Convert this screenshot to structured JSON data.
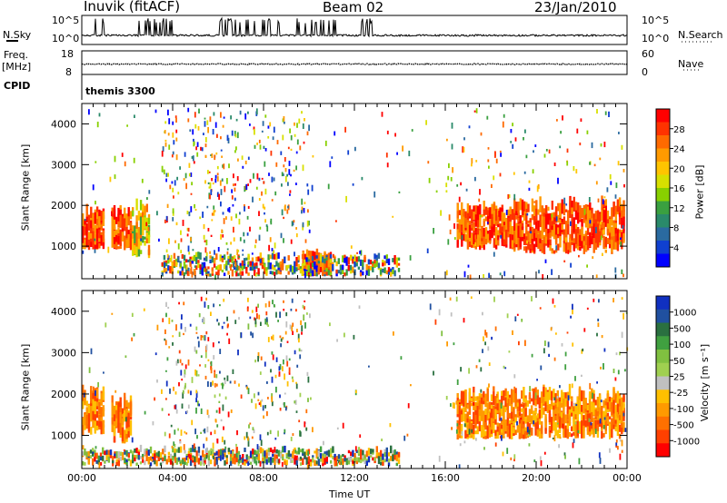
{
  "header": {
    "station": "Inuvik (fitACF)",
    "beam": "Beam 02",
    "date": "23/Jan/2010"
  },
  "top_panels": {
    "sky_label": "N.Sky",
    "search_label": "N.Search",
    "freq_label": "Freq.",
    "freq_unit": "[MHz]",
    "nave_label": "Nave",
    "cpid_label": "CPID",
    "cpid_value": "themis 3300",
    "sky_ticks": [
      "10^5",
      "10^0"
    ],
    "search_ticks": [
      "10^5",
      "10^0"
    ],
    "freq_ticks": [
      "18",
      "8"
    ],
    "nave_ticks": [
      "60",
      "0"
    ]
  },
  "chart_data": [
    {
      "type": "heatmap",
      "name": "power-panel",
      "ylabel": "Slant Range [km]",
      "ylim": [
        200,
        4500
      ],
      "yticks": [
        1000,
        2000,
        3000,
        4000
      ],
      "xlim": [
        0,
        24
      ],
      "colorbar": {
        "label": "Power [dB]",
        "ticks": [
          "28",
          "24",
          "20",
          "16",
          "12",
          "8",
          "4"
        ],
        "colors": [
          "#ff0000",
          "#ff3300",
          "#ff6a00",
          "#ff9a00",
          "#ffc400",
          "#d8e000",
          "#88d000",
          "#3aa040",
          "#2a8a6a",
          "#2a6aa0",
          "#1040d0",
          "#0000ff"
        ]
      },
      "regions": [
        {
          "t0": 0.0,
          "t1": 1.0,
          "r0": 900,
          "r1": 1700,
          "level": "high"
        },
        {
          "t0": 1.3,
          "t1": 2.2,
          "r0": 900,
          "r1": 1700,
          "level": "high"
        },
        {
          "t0": 2.2,
          "t1": 3.0,
          "r0": 700,
          "r1": 1900,
          "level": "mid"
        },
        {
          "t0": 16.5,
          "t1": 19.0,
          "r0": 900,
          "r1": 1800,
          "level": "high"
        },
        {
          "t0": 19.0,
          "t1": 23.9,
          "r0": 800,
          "r1": 1900,
          "level": "high"
        },
        {
          "t0": 9.7,
          "t1": 11.0,
          "r0": 250,
          "r1": 600,
          "level": "high"
        },
        {
          "t0": 3.5,
          "t1": 14.0,
          "r0": 250,
          "r1": 700,
          "level": "mixed"
        }
      ]
    },
    {
      "type": "heatmap",
      "name": "velocity-panel",
      "ylabel": "Slant Range [km]",
      "ylim": [
        200,
        4500
      ],
      "yticks": [
        1000,
        2000,
        3000,
        4000
      ],
      "xlim": [
        0,
        24
      ],
      "xlabel": "Time UT",
      "xticks": [
        "00:00",
        "04:00",
        "08:00",
        "12:00",
        "16:00",
        "20:00",
        "00:00"
      ],
      "colorbar": {
        "label": "Velocity [m s⁻¹]",
        "ticks": [
          "1000",
          "500",
          "100",
          "50",
          "25",
          "-25",
          "-100",
          "-500",
          "-1000"
        ],
        "colors": [
          "#1030c0",
          "#2050a0",
          "#2a7040",
          "#40a040",
          "#80c040",
          "#a0d050",
          "#c0c0c0",
          "#ffc000",
          "#ff9a00",
          "#ff7000",
          "#ff4000",
          "#ff0000"
        ]
      },
      "regions": [
        {
          "t0": 0.0,
          "t1": 1.0,
          "r0": 1000,
          "r1": 1900,
          "level": "neg"
        },
        {
          "t0": 1.3,
          "t1": 2.2,
          "r0": 800,
          "r1": 1700,
          "level": "neg"
        },
        {
          "t0": 16.5,
          "t1": 23.9,
          "r0": 900,
          "r1": 1900,
          "level": "neg"
        },
        {
          "t0": 0.0,
          "t1": 14.0,
          "r0": 250,
          "r1": 600,
          "level": "mixed"
        }
      ]
    }
  ]
}
